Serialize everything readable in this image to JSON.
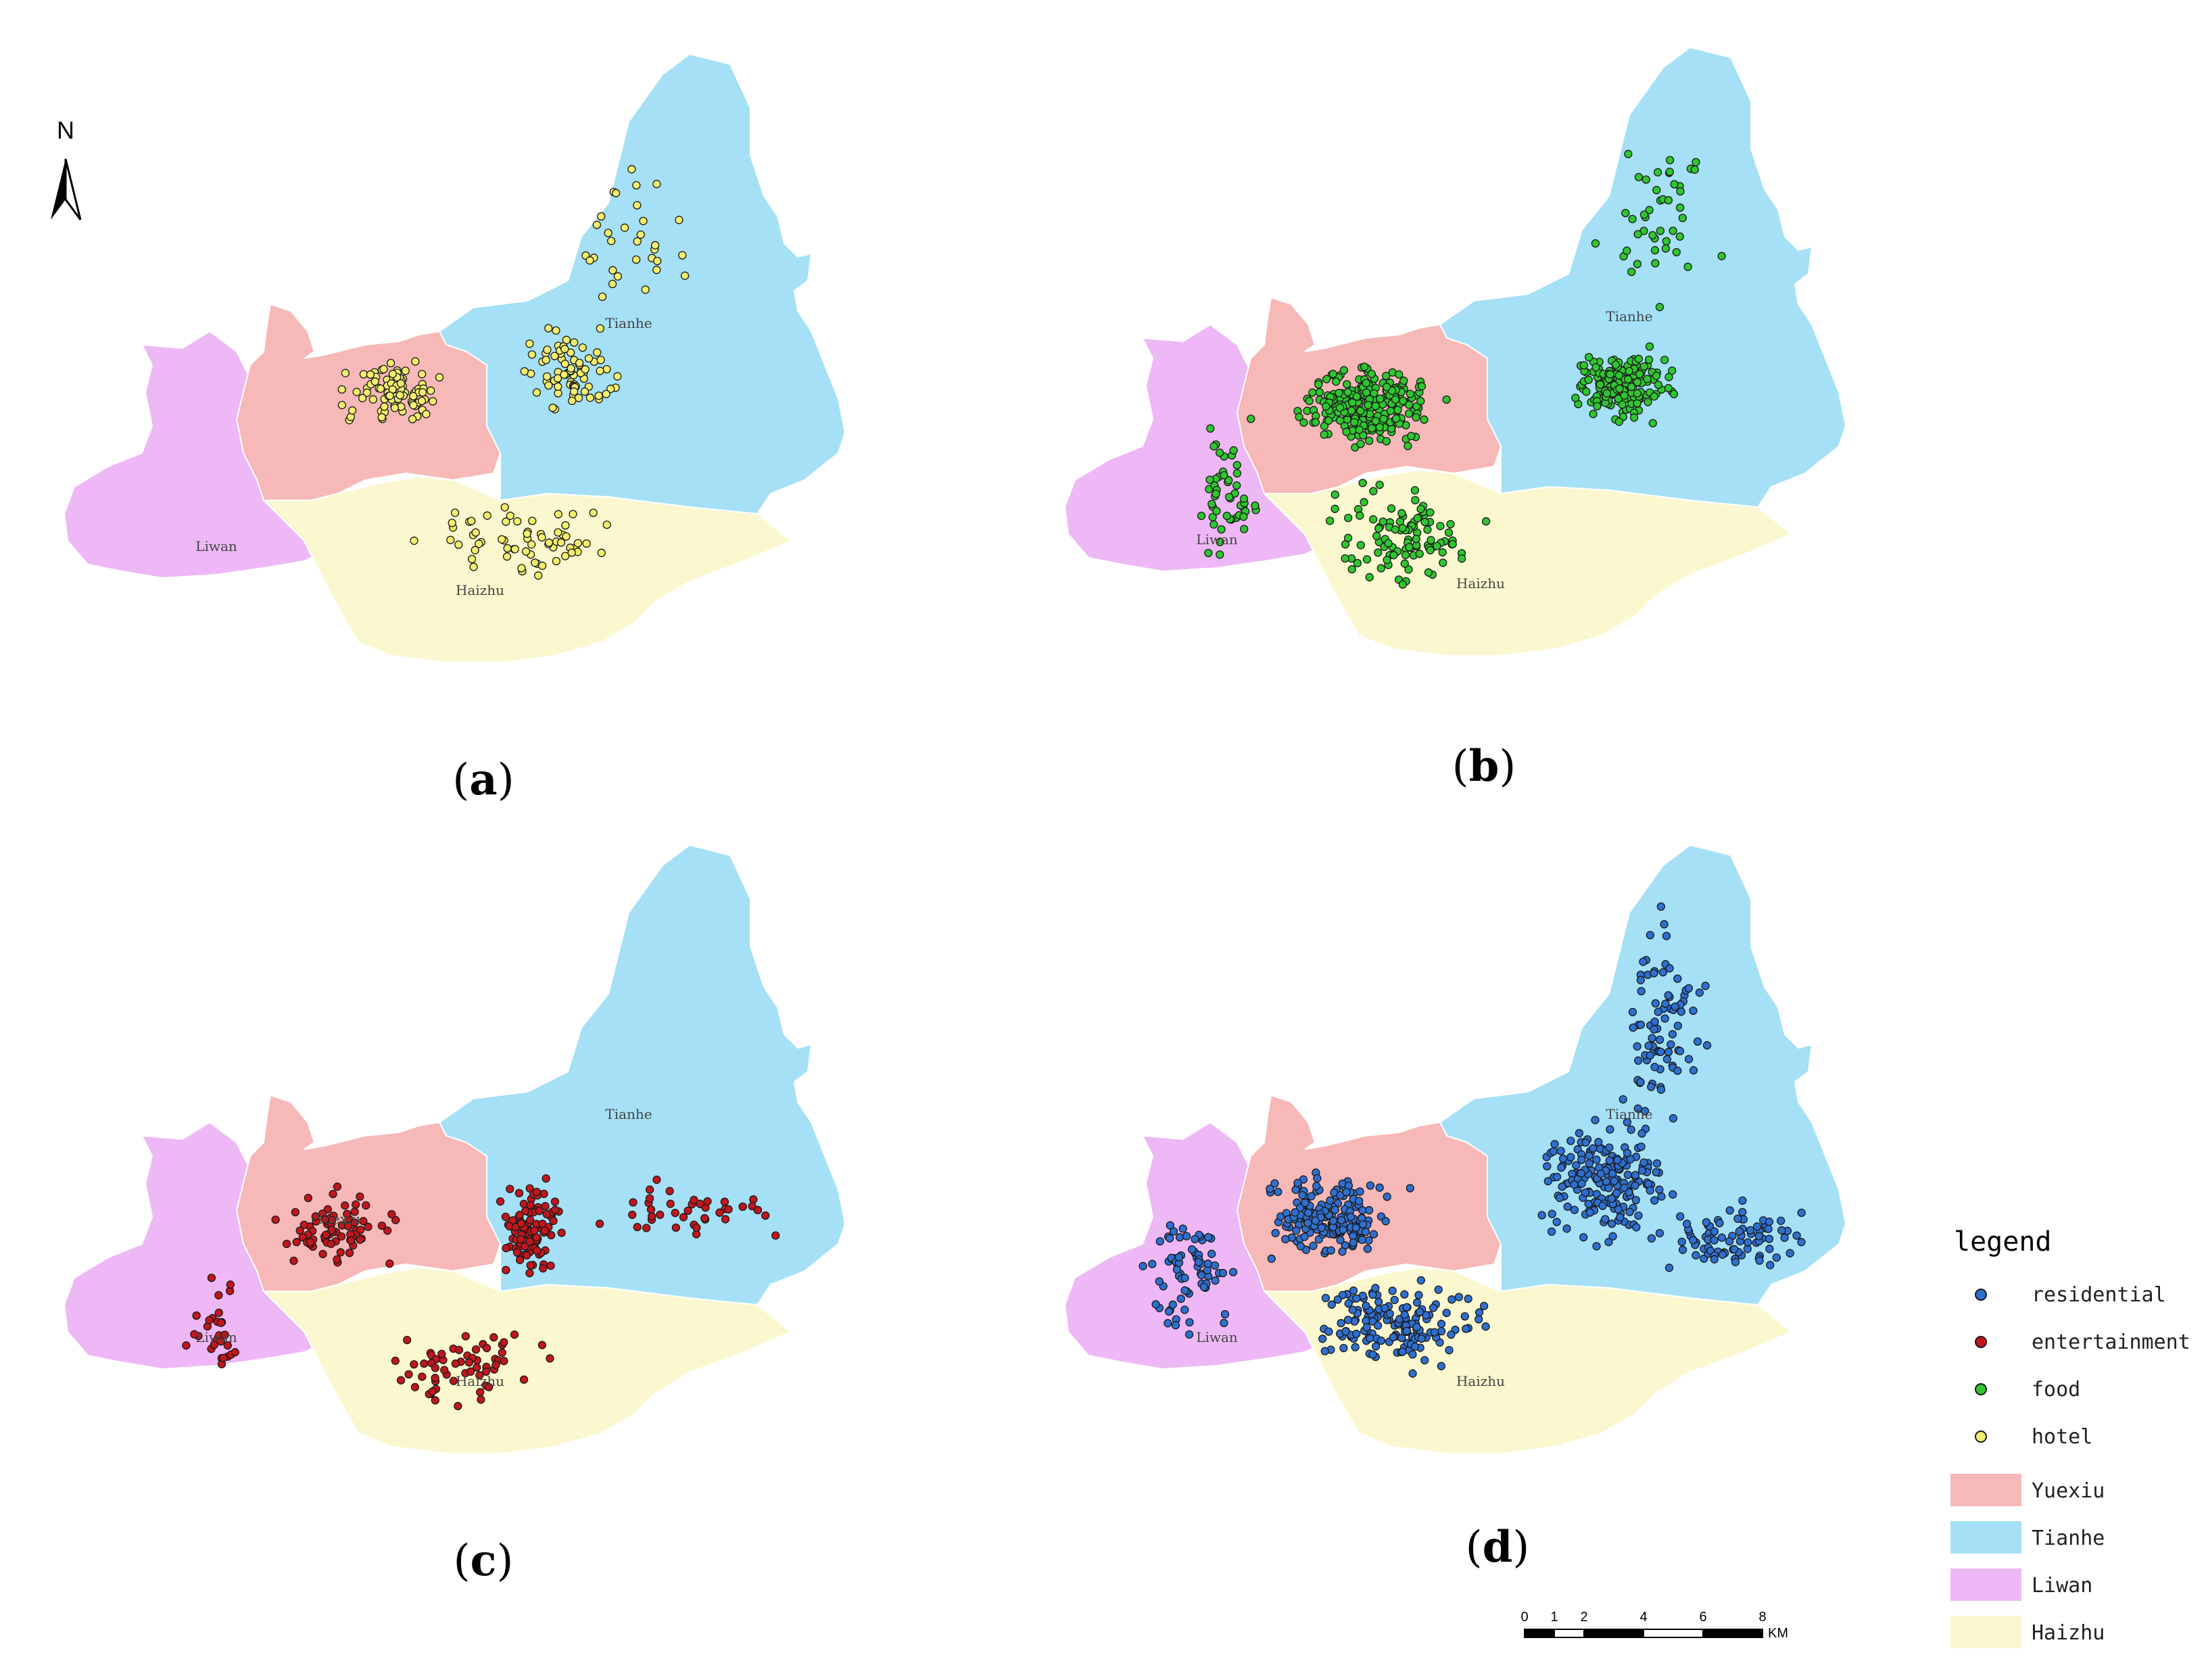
{
  "colors": {
    "Yuexiu": "#f7b8b8",
    "Tianhe": "#a5e0f6",
    "Liwan": "#eeb8f6",
    "Haizhu": "#fbf8d0",
    "residential": "#2f6fcf",
    "entertainment": "#c2161c",
    "food": "#2fc62f",
    "hotel": "#f4ee6e"
  },
  "north_label": "N",
  "panels": [
    {
      "label": "a",
      "category": "hotel"
    },
    {
      "label": "b",
      "category": "food"
    },
    {
      "label": "c",
      "category": "entertainment"
    },
    {
      "label": "d",
      "category": "residential"
    }
  ],
  "district_labels": {
    "a": [
      "Tianhe",
      "Liwan",
      "Haizhu"
    ],
    "b": [
      "Tianhe",
      "Liwan",
      "Haizhu"
    ],
    "c": [
      "Tianhe",
      "Yuexiu",
      "Liwan",
      "Haizhu"
    ],
    "d": [
      "Tianhe",
      "Liwan",
      "Haizhu"
    ]
  },
  "legend": {
    "title": "legend",
    "points": [
      {
        "label": "residential",
        "key": "residential"
      },
      {
        "label": "entertainment",
        "key": "entertainment"
      },
      {
        "label": "food",
        "key": "food"
      },
      {
        "label": "hotel",
        "key": "hotel"
      }
    ],
    "districts": [
      {
        "label": "Yuexiu",
        "key": "Yuexiu"
      },
      {
        "label": "Tianhe",
        "key": "Tianhe"
      },
      {
        "label": "Liwan",
        "key": "Liwan"
      },
      {
        "label": "Haizhu",
        "key": "Haizhu"
      }
    ]
  },
  "scale_bar": {
    "ticks": [
      "0",
      "1",
      "2",
      "4",
      "6",
      "8"
    ],
    "unit": "KM"
  }
}
